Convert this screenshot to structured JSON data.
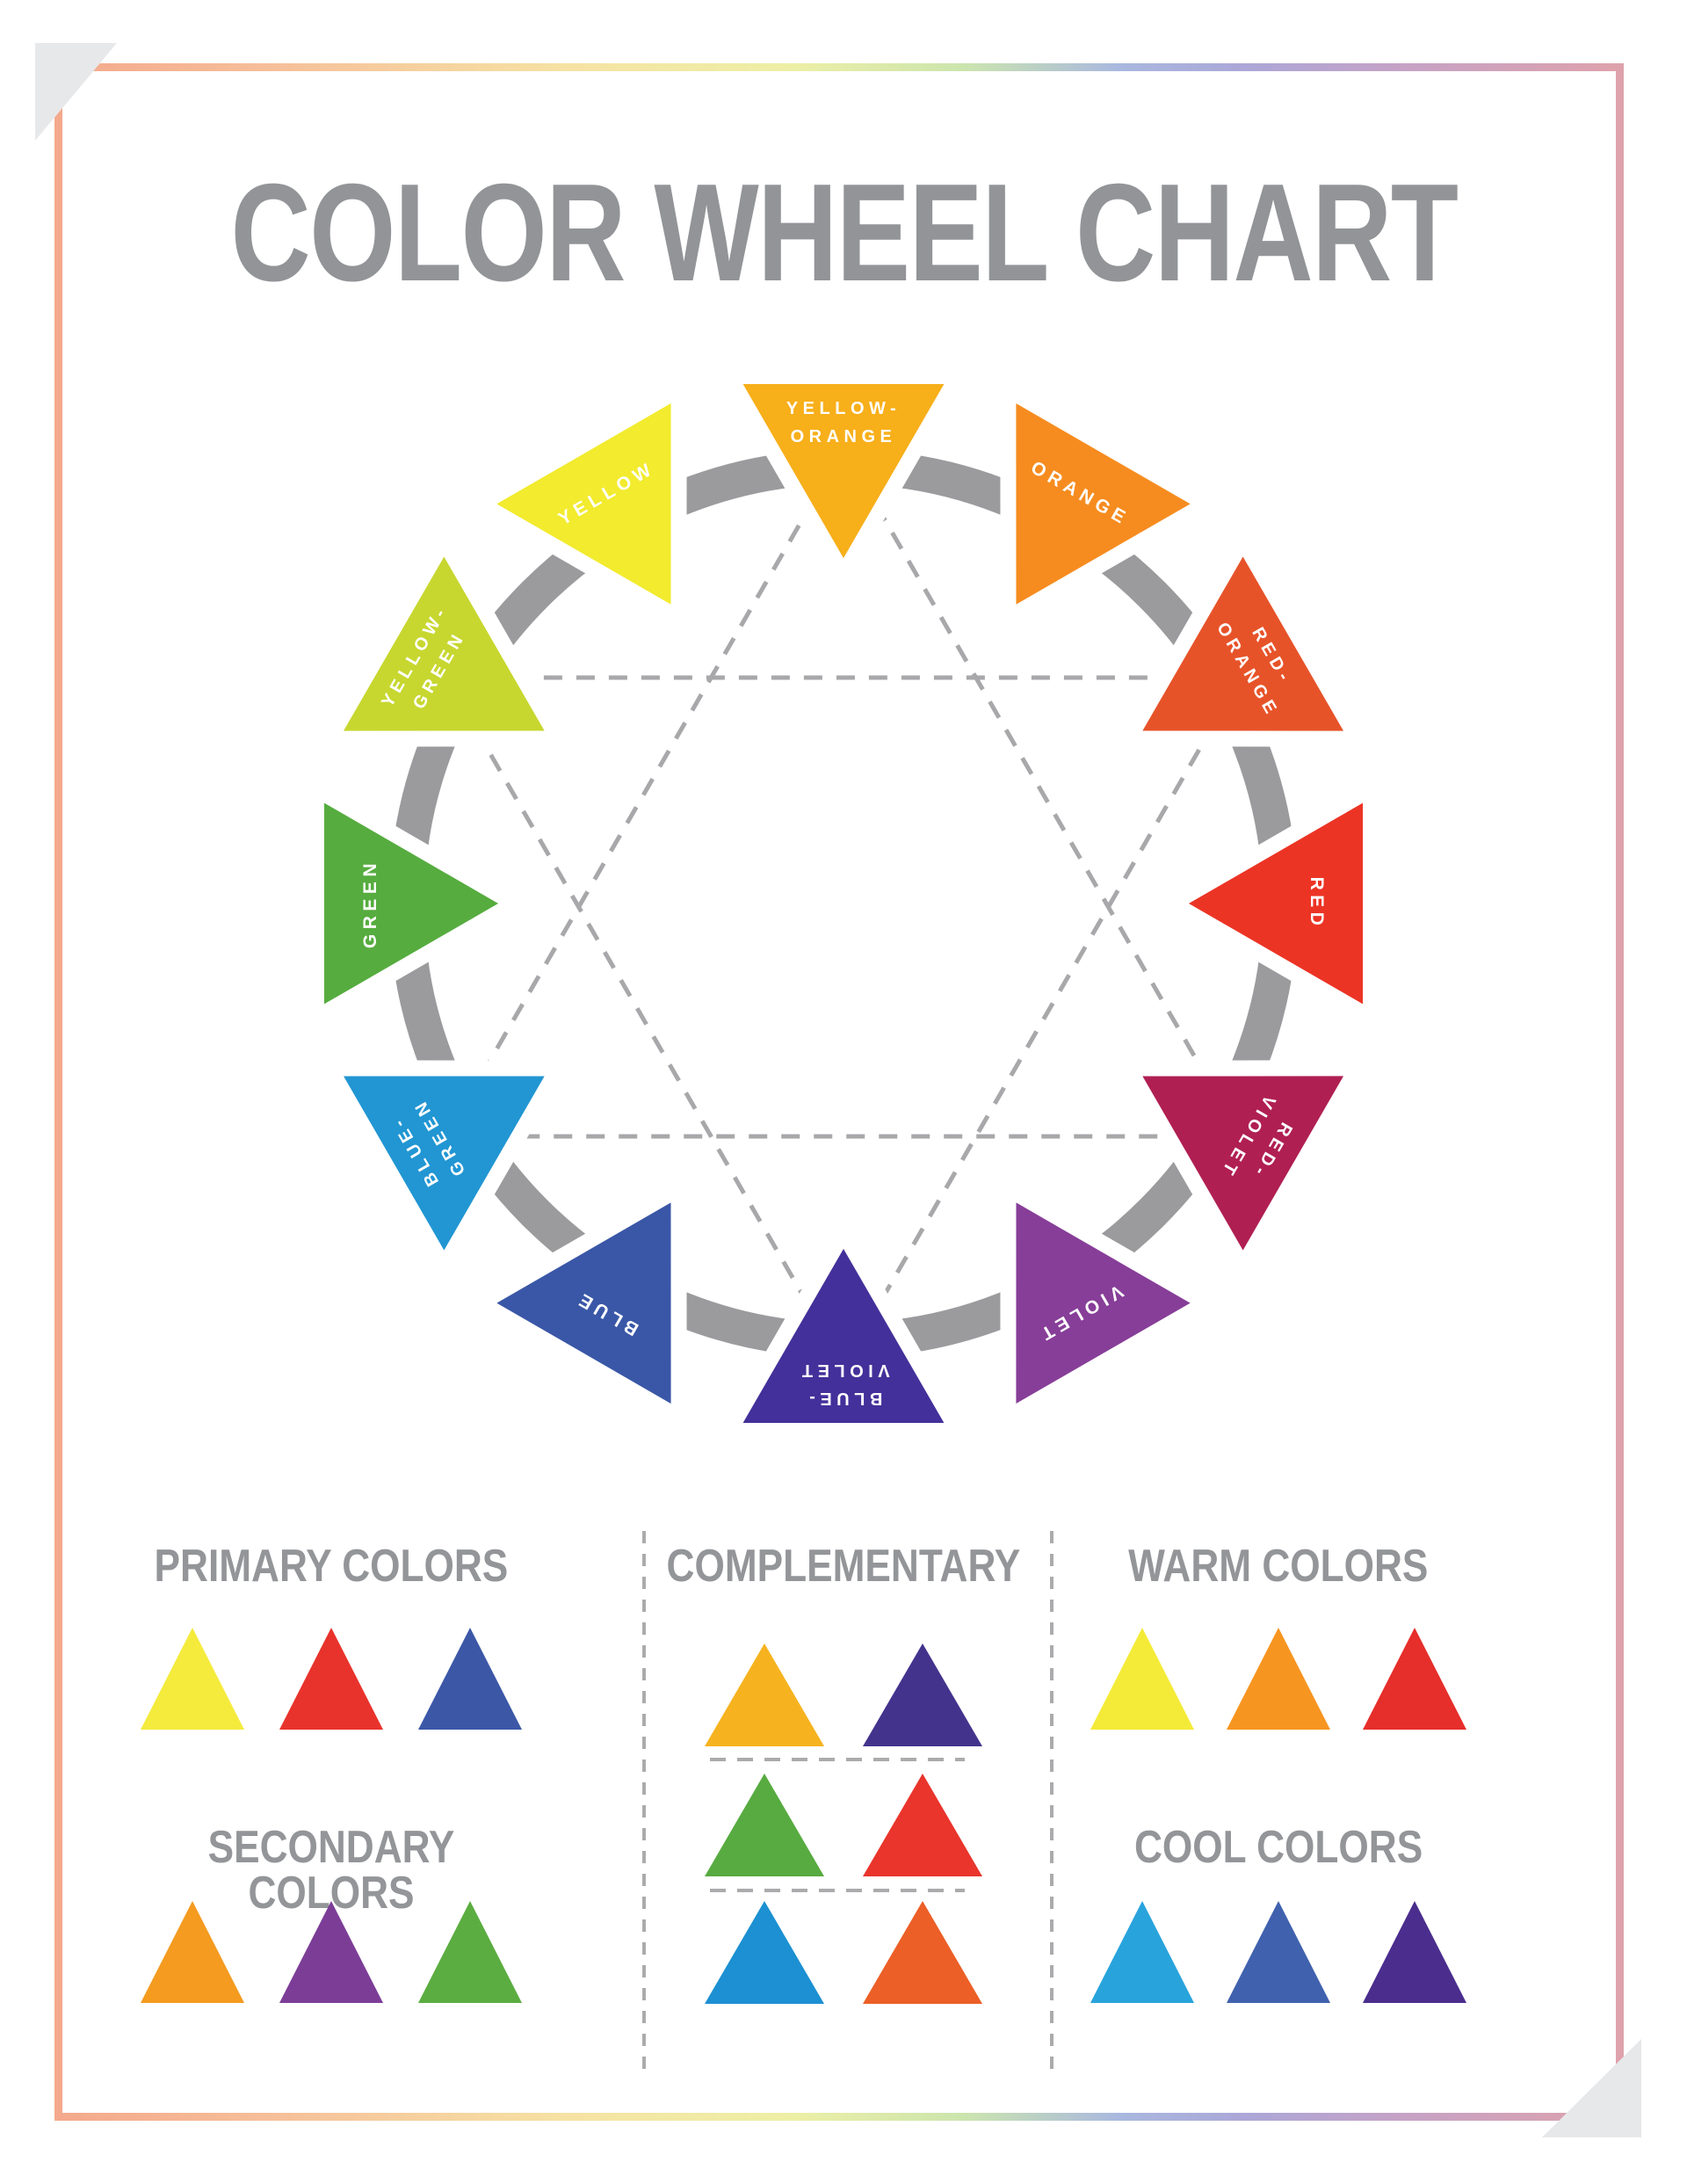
{
  "title": {
    "text": "COLOR WHEEL CHART",
    "color": "#929497"
  },
  "frame": {
    "gradient": [
      "#f4a98c",
      "#f6c09a",
      "#f6e3a4",
      "#edefa6",
      "#cbe5ae",
      "#a9b8df",
      "#aba7d8",
      "#c5a2c6",
      "#dea2ac"
    ],
    "fold_color": "#e7e8ea"
  },
  "wheel": {
    "ring_color": "#9b9b9e",
    "dash_color": "#a8a8ab",
    "label_color": "#ffffff",
    "segments": [
      {
        "name": "yellow-orange",
        "lines": [
          "YELLOW-",
          "ORANGE"
        ],
        "color": "#f7af1a"
      },
      {
        "name": "orange",
        "lines": [
          "ORANGE"
        ],
        "color": "#f68c1f"
      },
      {
        "name": "red-orange",
        "lines": [
          "RED-",
          "ORANGE"
        ],
        "color": "#e75329"
      },
      {
        "name": "red",
        "lines": [
          "RED"
        ],
        "color": "#ec3425"
      },
      {
        "name": "red-violet",
        "lines": [
          "RED-",
          "VIOLET"
        ],
        "color": "#b01f52"
      },
      {
        "name": "violet",
        "lines": [
          "VIOLET"
        ],
        "color": "#873e98"
      },
      {
        "name": "blue-violet",
        "lines": [
          "BLUE-",
          "VIOLET"
        ],
        "color": "#43309a"
      },
      {
        "name": "blue",
        "lines": [
          "BLUE"
        ],
        "color": "#3a57a7"
      },
      {
        "name": "blue-green",
        "lines": [
          "BLUE-",
          "GREEN"
        ],
        "color": "#2196d3"
      },
      {
        "name": "green",
        "lines": [
          "GREEN"
        ],
        "color": "#56ac3f"
      },
      {
        "name": "yellow-green",
        "lines": [
          "YELLOW-",
          "GREEN"
        ],
        "color": "#c7d72f"
      },
      {
        "name": "yellow",
        "lines": [
          "YELLOW"
        ],
        "color": "#f2eb2e"
      }
    ]
  },
  "sections": {
    "primary": {
      "title": "PRIMARY COLORS",
      "swatches": [
        {
          "name": "yellow",
          "color": "#f4eb3d"
        },
        {
          "name": "red",
          "color": "#e8332c"
        },
        {
          "name": "blue",
          "color": "#3b57a6"
        }
      ]
    },
    "secondary": {
      "title": "SECONDARY COLORS",
      "swatches": [
        {
          "name": "orange",
          "color": "#f49b20"
        },
        {
          "name": "violet",
          "color": "#7c3d97"
        },
        {
          "name": "green",
          "color": "#5bad41"
        }
      ]
    },
    "complementary": {
      "title": "COMPLEMENTARY",
      "rows": [
        [
          {
            "name": "yellow-orange",
            "color": "#f6b31f"
          },
          {
            "name": "blue-violet",
            "color": "#44338d"
          }
        ],
        [
          {
            "name": "green",
            "color": "#57ab40"
          },
          {
            "name": "red",
            "color": "#e9352c"
          }
        ],
        [
          {
            "name": "blue-green",
            "color": "#1c90d2"
          },
          {
            "name": "red-orange",
            "color": "#ec5f27"
          }
        ]
      ]
    },
    "warm": {
      "title": "WARM COLORS",
      "swatches": [
        {
          "name": "yellow",
          "color": "#f4eb38"
        },
        {
          "name": "orange",
          "color": "#f79521"
        },
        {
          "name": "red",
          "color": "#e62e2a"
        }
      ]
    },
    "cool": {
      "title": "COOL COLORS",
      "swatches": [
        {
          "name": "blue-green",
          "color": "#29a3dc"
        },
        {
          "name": "blue",
          "color": "#4061ad"
        },
        {
          "name": "blue-violet",
          "color": "#4a2d8d"
        }
      ]
    }
  }
}
